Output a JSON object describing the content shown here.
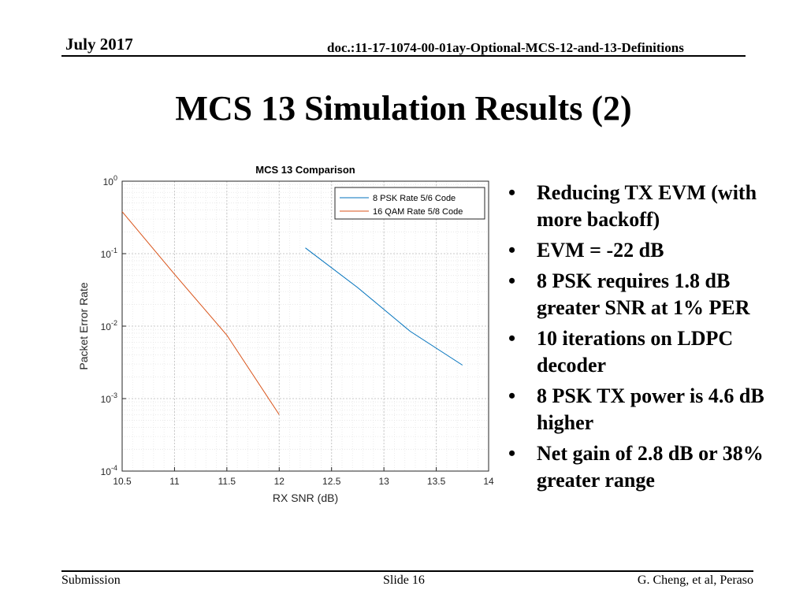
{
  "header": {
    "date": "July 2017",
    "doc": "doc.:11-17-1074-00-01ay-Optional-MCS-12-and-13-Definitions"
  },
  "slide_title": "MCS 13 Simulation Results (2)",
  "bullets": [
    "Reducing TX EVM (with more backoff)",
    "EVM = -22 dB",
    "8 PSK requires 1.8 dB greater SNR at 1% PER",
    "10 iterations on LDPC decoder",
    "8 PSK TX power is 4.6 dB higher",
    "Net gain of 2.8 dB or 38% greater range"
  ],
  "footer": {
    "left": "Submission",
    "center": "Slide 16",
    "right": "G. Cheng, et al, Peraso"
  },
  "colors": {
    "series1": "#0072BD",
    "series2": "#D95319"
  },
  "chart_data": {
    "type": "line",
    "title": "MCS 13 Comparison",
    "xlabel": "RX SNR (dB)",
    "ylabel": "Packet Error Rate",
    "xlim": [
      10.5,
      14
    ],
    "ylim": [
      0.0001,
      1
    ],
    "yscale": "log",
    "xticks": [
      "10.5",
      "11",
      "11.5",
      "12",
      "12.5",
      "13",
      "13.5",
      "14"
    ],
    "yticks": [
      {
        "base": "10",
        "exp": "0"
      },
      {
        "base": "10",
        "exp": "-1"
      },
      {
        "base": "10",
        "exp": "-2"
      },
      {
        "base": "10",
        "exp": "-3"
      },
      {
        "base": "10",
        "exp": "-4"
      }
    ],
    "grid": true,
    "legend_position": "top-right",
    "series": [
      {
        "name": "8 PSK Rate 5/6 Code",
        "x": [
          12.25,
          12.75,
          13.25,
          13.75
        ],
        "y": [
          0.12,
          0.034,
          0.0085,
          0.0029
        ]
      },
      {
        "name": "16 QAM Rate 5/8 Code",
        "x": [
          10.5,
          11.0,
          11.5,
          12.0
        ],
        "y": [
          0.38,
          0.052,
          0.0075,
          0.0006
        ]
      }
    ]
  }
}
